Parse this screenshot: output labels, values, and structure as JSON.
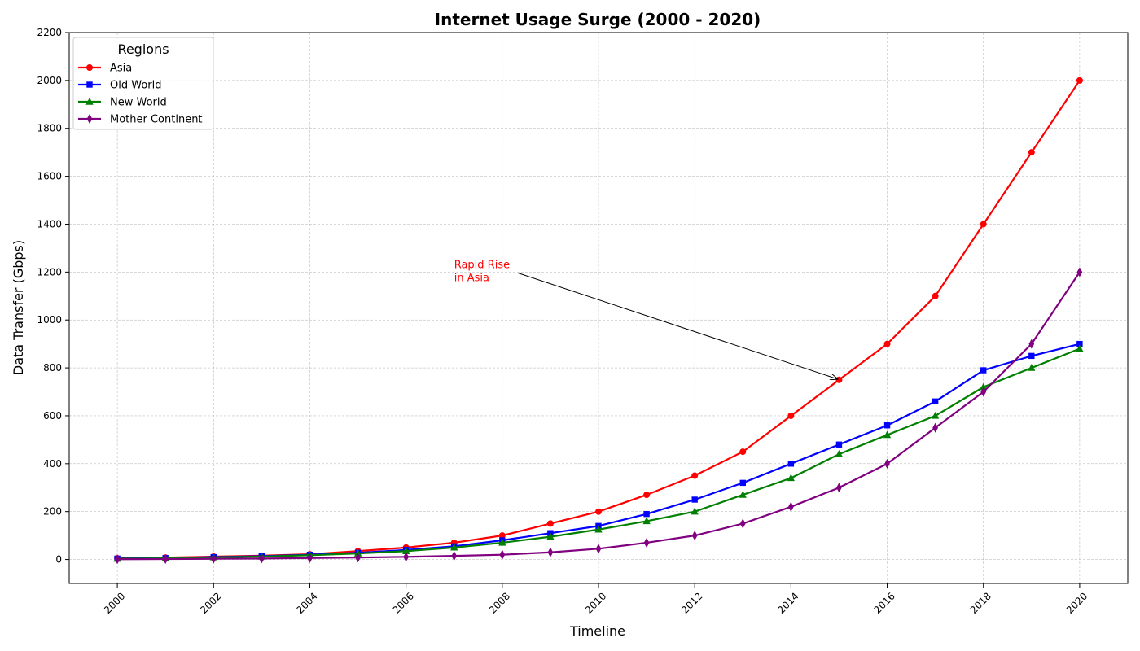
{
  "chart_data": {
    "type": "line",
    "title": "Internet Usage Surge (2000 - 2020)",
    "xlabel": "Timeline",
    "ylabel": "Data Transfer (Gbps)",
    "x": [
      2000,
      2001,
      2002,
      2003,
      2004,
      2005,
      2006,
      2007,
      2008,
      2009,
      2010,
      2011,
      2012,
      2013,
      2014,
      2015,
      2016,
      2017,
      2018,
      2019,
      2020
    ],
    "xticks": [
      "2000",
      "2002",
      "2004",
      "2006",
      "2008",
      "2010",
      "2012",
      "2014",
      "2016",
      "2018",
      "2020"
    ],
    "yticks": [
      "0",
      "200",
      "400",
      "600",
      "800",
      "1000",
      "1200",
      "1400",
      "1600",
      "1800",
      "2000",
      "2200"
    ],
    "xlim": [
      1999,
      2021
    ],
    "ylim": [
      -100,
      2200
    ],
    "grid": true,
    "legend": {
      "title": "Regions",
      "position": "top-left"
    },
    "series": [
      {
        "name": "Asia",
        "color": "#ff0000",
        "marker": "circle",
        "values": [
          5,
          8,
          12,
          16,
          22,
          35,
          50,
          70,
          100,
          150,
          200,
          270,
          350,
          450,
          600,
          750,
          900,
          1100,
          1400,
          1700,
          2000
        ]
      },
      {
        "name": "Old World",
        "color": "#0000ff",
        "marker": "square",
        "values": [
          4,
          6,
          10,
          14,
          20,
          28,
          40,
          55,
          80,
          110,
          140,
          190,
          250,
          320,
          400,
          480,
          560,
          660,
          790,
          850,
          900
        ]
      },
      {
        "name": "New World",
        "color": "#008000",
        "marker": "triangle",
        "values": [
          3,
          5,
          9,
          12,
          18,
          25,
          35,
          50,
          70,
          95,
          125,
          160,
          200,
          270,
          340,
          440,
          520,
          600,
          720,
          800,
          880
        ]
      },
      {
        "name": "Mother Continent",
        "color": "#800080",
        "marker": "diamond",
        "values": [
          1,
          2,
          3,
          4,
          6,
          8,
          11,
          15,
          20,
          30,
          45,
          70,
          100,
          150,
          220,
          300,
          400,
          550,
          700,
          900,
          1200
        ]
      }
    ],
    "annotations": [
      {
        "text_lines": [
          "Rapid Rise",
          "in Asia"
        ],
        "color": "#ff0000",
        "text_x": 2007,
        "text_y": 1200,
        "arrow_x": 2015,
        "arrow_y": 750
      }
    ]
  }
}
